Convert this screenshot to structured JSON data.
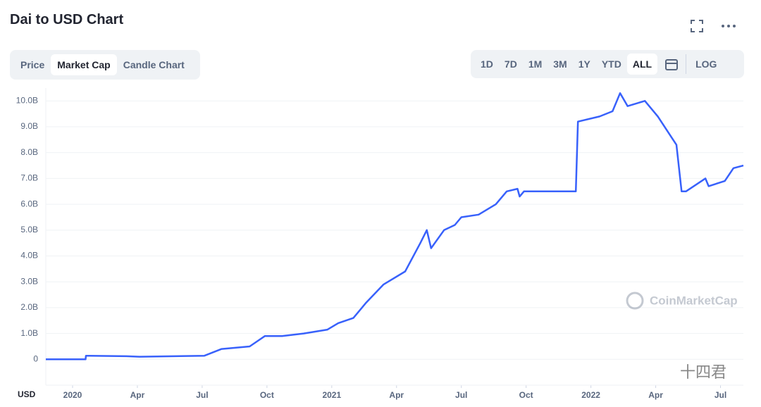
{
  "header": {
    "title": "Dai to USD Chart"
  },
  "tabs": [
    "Price",
    "Market Cap",
    "Candle Chart"
  ],
  "active_tab": 1,
  "ranges": [
    "1D",
    "7D",
    "1M",
    "3M",
    "1Y",
    "YTD",
    "ALL"
  ],
  "active_range": 6,
  "log_button": "LOG",
  "watermark": "CoinMarketCap",
  "signature": "十四君",
  "currency": "USD",
  "chart_data": {
    "type": "line",
    "color": "#3861fb",
    "x": [
      -1.24,
      0.6,
      0.62,
      2.5,
      3.1,
      6.1,
      6.9,
      8.2,
      8.55,
      8.9,
      9.7,
      10.7,
      11.8,
      12.3,
      13.0,
      13.6,
      14.4,
      15.4,
      16.1,
      16.4,
      16.6,
      17.2,
      17.7,
      18.0,
      18.8,
      19.6,
      20.1,
      20.6,
      20.7,
      20.9,
      23.3,
      23.4,
      24.4,
      25.0,
      25.35,
      25.7,
      26.5,
      27.1,
      27.96,
      28.2,
      28.4,
      29.3,
      29.45,
      30.2,
      30.6,
      31.06
    ],
    "values": [
      0,
      0,
      0.14,
      0.12,
      0.1,
      0.14,
      0.4,
      0.5,
      0.7,
      0.9,
      0.9,
      1.0,
      1.15,
      1.4,
      1.6,
      2.2,
      2.9,
      3.4,
      4.5,
      5.0,
      4.3,
      5.0,
      5.2,
      5.5,
      5.6,
      6.0,
      6.5,
      6.6,
      6.3,
      6.5,
      6.5,
      9.2,
      9.4,
      9.6,
      10.3,
      9.8,
      10.0,
      9.4,
      8.3,
      6.5,
      6.5,
      7.0,
      6.7,
      6.9,
      7.4,
      7.5
    ],
    "xlim": [
      -1.24,
      31.06
    ],
    "ylim": [
      -1.0,
      10.5
    ],
    "xticks": [
      {
        "value": 0,
        "label": "2020"
      },
      {
        "value": 3,
        "label": "Apr"
      },
      {
        "value": 6,
        "label": "Jul"
      },
      {
        "value": 9,
        "label": "Oct"
      },
      {
        "value": 12,
        "label": "2021"
      },
      {
        "value": 15,
        "label": "Apr"
      },
      {
        "value": 18,
        "label": "Jul"
      },
      {
        "value": 21,
        "label": "Oct"
      },
      {
        "value": 24,
        "label": "2022"
      },
      {
        "value": 27,
        "label": "Apr"
      },
      {
        "value": 30,
        "label": "Jul"
      }
    ],
    "yticks": [
      0,
      {
        "value": 1,
        "label": "1.0B"
      },
      {
        "value": 2,
        "label": "2.0B"
      },
      {
        "value": 3,
        "label": "3.0B"
      },
      {
        "value": 4,
        "label": "4.0B"
      },
      {
        "value": 5,
        "label": "5.0B"
      },
      {
        "value": 6,
        "label": "6.0B"
      },
      {
        "value": 7,
        "label": "7.0B"
      },
      {
        "value": 8,
        "label": "8.0B"
      },
      {
        "value": 9,
        "label": "9.0B"
      },
      {
        "value": 10,
        "label": "10.0B"
      }
    ],
    "grid": true
  }
}
